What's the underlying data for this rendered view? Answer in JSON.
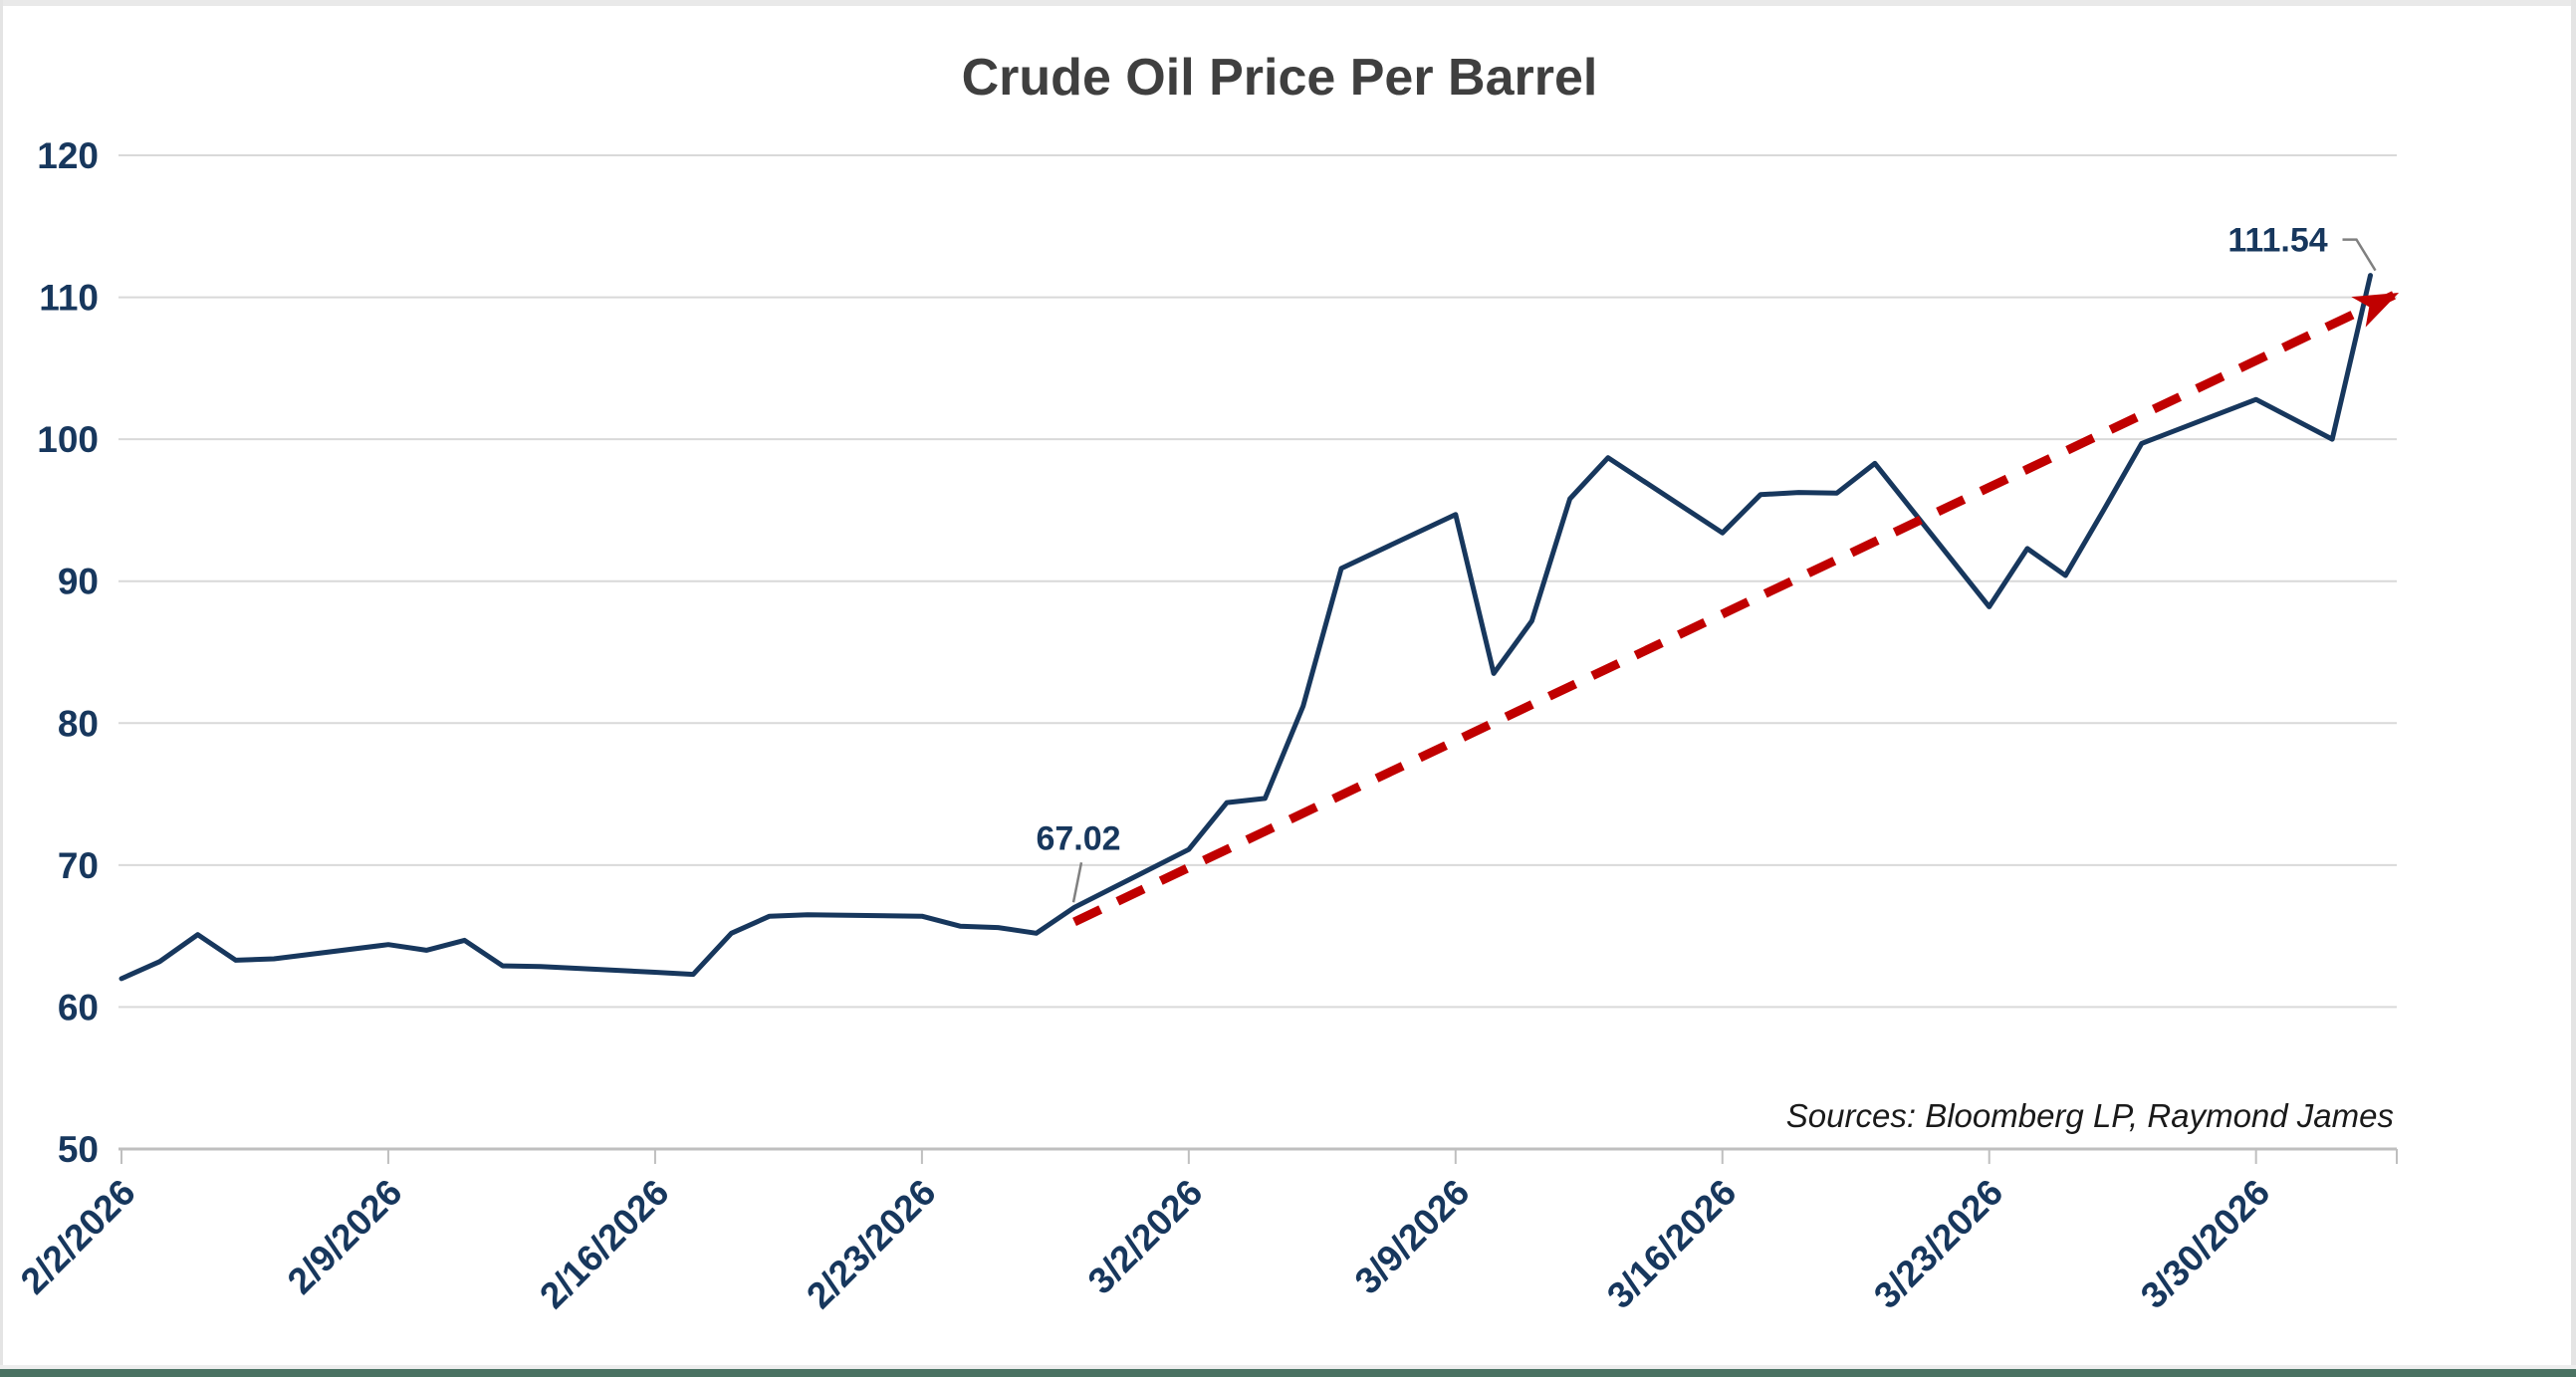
{
  "chart_data": {
    "type": "line",
    "title": "Crude Oil Price Per Barrel",
    "sources": "Sources: Bloomberg LP, Raymond James",
    "xlabel": "",
    "ylabel": "",
    "ylim": [
      50,
      120
    ],
    "y_ticks": [
      50,
      60,
      70,
      80,
      90,
      100,
      110,
      120
    ],
    "start_date": "2/2/2026",
    "x_tick_labels": [
      "2/2/2026",
      "2/9/2026",
      "2/16/2026",
      "2/23/2026",
      "3/2/2026",
      "3/9/2026",
      "3/16/2026",
      "3/23/2026",
      "3/30/2026"
    ],
    "grid": true,
    "legend": false,
    "series": [
      {
        "name": "Crude oil price per barrel (USD)",
        "color": "#17375D",
        "points": [
          {
            "date": "2/2/2026",
            "value": 62.0
          },
          {
            "date": "2/3/2026",
            "value": 63.2
          },
          {
            "date": "2/4/2026",
            "value": 65.1
          },
          {
            "date": "2/5/2026",
            "value": 63.3
          },
          {
            "date": "2/6/2026",
            "value": 63.4
          },
          {
            "date": "2/9/2026",
            "value": 64.4
          },
          {
            "date": "2/10/2026",
            "value": 64.0
          },
          {
            "date": "2/11/2026",
            "value": 64.7
          },
          {
            "date": "2/12/2026",
            "value": 62.9
          },
          {
            "date": "2/13/2026",
            "value": 62.85
          },
          {
            "date": "2/16/2026",
            "value": 62.45
          },
          {
            "date": "2/17/2026",
            "value": 62.3
          },
          {
            "date": "2/18/2026",
            "value": 65.2
          },
          {
            "date": "2/19/2026",
            "value": 66.4
          },
          {
            "date": "2/20/2026",
            "value": 66.5
          },
          {
            "date": "2/23/2026",
            "value": 66.4
          },
          {
            "date": "2/24/2026",
            "value": 65.7
          },
          {
            "date": "2/25/2026",
            "value": 65.6
          },
          {
            "date": "2/26/2026",
            "value": 65.2
          },
          {
            "date": "2/27/2026",
            "value": 67.02
          },
          {
            "date": "3/2/2026",
            "value": 71.1
          },
          {
            "date": "3/3/2026",
            "value": 74.4
          },
          {
            "date": "3/4/2026",
            "value": 74.7
          },
          {
            "date": "3/5/2026",
            "value": 81.2
          },
          {
            "date": "3/6/2026",
            "value": 90.9
          },
          {
            "date": "3/9/2026",
            "value": 94.7
          },
          {
            "date": "3/10/2026",
            "value": 83.5
          },
          {
            "date": "3/11/2026",
            "value": 87.2
          },
          {
            "date": "3/12/2026",
            "value": 95.8
          },
          {
            "date": "3/13/2026",
            "value": 98.7
          },
          {
            "date": "3/16/2026",
            "value": 93.4
          },
          {
            "date": "3/17/2026",
            "value": 96.1
          },
          {
            "date": "3/18/2026",
            "value": 96.25
          },
          {
            "date": "3/19/2026",
            "value": 96.2
          },
          {
            "date": "3/20/2026",
            "value": 98.3
          },
          {
            "date": "3/23/2026",
            "value": 88.2
          },
          {
            "date": "3/24/2026",
            "value": 92.3
          },
          {
            "date": "3/25/2026",
            "value": 90.4
          },
          {
            "date": "3/26/2026",
            "value": 95.0
          },
          {
            "date": "3/27/2026",
            "value": 99.7
          },
          {
            "date": "3/30/2026",
            "value": 102.8
          },
          {
            "date": "3/31/2026",
            "value": 101.4
          },
          {
            "date": "4/1/2026",
            "value": 100.0
          },
          {
            "date": "4/2/2026",
            "value": 111.54
          }
        ]
      }
    ],
    "trendline": {
      "name": "upward trend arrow",
      "color": "#C00000",
      "style": "dashed",
      "start": {
        "date": "2/27/2026",
        "value": 66.0
      },
      "end": {
        "date": "4/3/2026",
        "value": 110.15
      }
    },
    "annotations": [
      {
        "label": "67.02",
        "date": "2/27/2026",
        "value": 67.02
      },
      {
        "label": "111.54",
        "date": "4/2/2026",
        "value": 111.54
      }
    ],
    "colors": {
      "line": "#17375D",
      "trend": "#C00000",
      "gridline": "#D9D9D9",
      "axis": "#BFBFBF",
      "axis_labels": "#17375D",
      "title": "#3F3F3F",
      "leader": "#808080"
    }
  }
}
